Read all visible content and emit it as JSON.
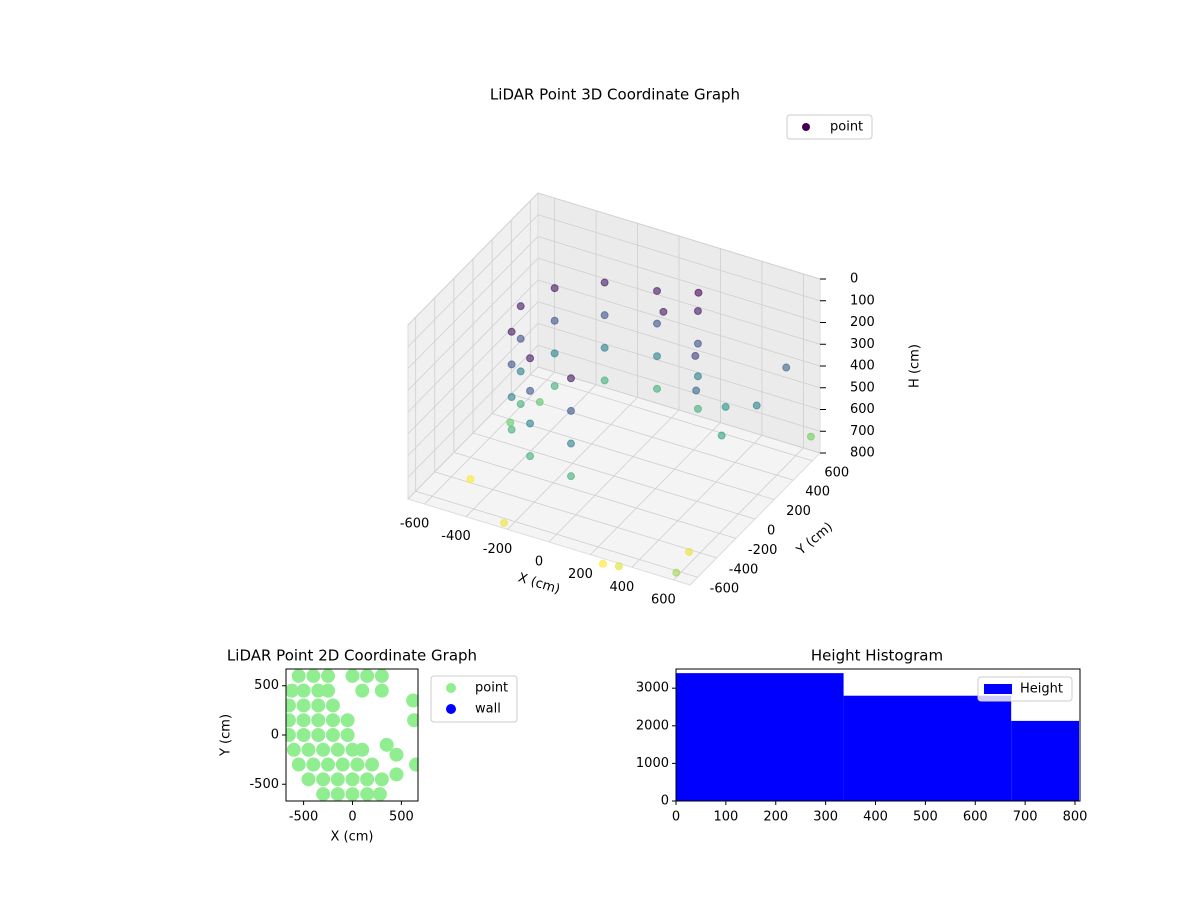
{
  "chart_data": [
    {
      "type": "scatter3d",
      "title": "LiDAR Point 3D Coordinate Graph",
      "xlabel": "X (cm)",
      "ylabel": "Y (cm)",
      "zlabel": "H (cm)",
      "xlim": [
        -680,
        680
      ],
      "ylim": [
        -680,
        680
      ],
      "zlim": [
        800,
        0
      ],
      "xticks": [
        -600,
        -400,
        -200,
        0,
        200,
        400,
        600
      ],
      "yticks": [
        -600,
        -400,
        -200,
        0,
        200,
        400,
        600
      ],
      "zticks": [
        0,
        100,
        200,
        300,
        400,
        500,
        600,
        700,
        800
      ],
      "colormap": "viridis",
      "grid": true,
      "legend": "upper right",
      "series": [
        {
          "name": "point",
          "color": "#440154",
          "x": [
            225,
            225,
            225,
            225,
            0,
            0,
            0,
            0,
            -225,
            -225,
            -225,
            -225,
            -390,
            -390,
            -390,
            -390,
            -450,
            -450,
            -450,
            -450,
            -390,
            -390,
            -390,
            -390,
            -225,
            -225,
            -225,
            -225,
            0,
            0,
            0,
            0,
            300,
            350,
            400,
            450,
            100,
            200,
            600,
            550,
            -600,
            -300,
            300,
            500,
            200,
            650,
            -500,
            -450,
            600
          ],
          "y": [
            390,
            390,
            390,
            390,
            450,
            450,
            450,
            450,
            390,
            390,
            390,
            390,
            225,
            225,
            225,
            225,
            0,
            0,
            0,
            0,
            -225,
            -225,
            -225,
            -225,
            -390,
            -390,
            -390,
            -390,
            -450,
            -450,
            -450,
            -450,
            200,
            100,
            300,
            150,
            300,
            450,
            500,
            300,
            -200,
            -500,
            -600,
            -300,
            -550,
            650,
            0,
            200,
            -650
          ],
          "z": [
            150,
            300,
            450,
            600,
            150,
            300,
            450,
            600,
            150,
            300,
            450,
            600,
            150,
            300,
            450,
            600,
            150,
            300,
            450,
            600,
            150,
            300,
            450,
            600,
            150,
            300,
            450,
            600,
            150,
            300,
            450,
            600,
            250,
            350,
            500,
            550,
            150,
            100,
            350,
            450,
            900,
            880,
            860,
            870,
            900,
            720,
            700,
            680,
            780
          ]
        }
      ]
    },
    {
      "type": "scatter",
      "title": "LiDAR Point 2D Coordinate Graph",
      "xlabel": "X (cm)",
      "ylabel": "Y (cm)",
      "xlim": [
        -680,
        670
      ],
      "ylim": [
        -670,
        670
      ],
      "xticks": [
        -500,
        0,
        500
      ],
      "yticks": [
        -500,
        0,
        500
      ],
      "legend": "outside right",
      "series": [
        {
          "name": "point",
          "color": "#90ee90",
          "x": [
            -550,
            -400,
            -250,
            0,
            150,
            300,
            -620,
            -500,
            -350,
            -250,
            100,
            300,
            -650,
            -500,
            -350,
            -200,
            -650,
            -500,
            -350,
            -200,
            -50,
            -650,
            -500,
            -350,
            -200,
            -50,
            -600,
            -450,
            -300,
            -150,
            0,
            100,
            -550,
            -400,
            -250,
            -100,
            50,
            200,
            -450,
            -300,
            -150,
            0,
            150,
            300,
            -300,
            -150,
            0,
            150,
            280,
            450,
            450,
            630,
            620,
            650,
            350
          ],
          "y": [
            600,
            600,
            600,
            600,
            600,
            600,
            450,
            450,
            450,
            450,
            450,
            450,
            300,
            300,
            300,
            300,
            150,
            150,
            150,
            150,
            150,
            0,
            0,
            0,
            0,
            0,
            -150,
            -150,
            -150,
            -150,
            -150,
            -150,
            -300,
            -300,
            -300,
            -300,
            -300,
            -300,
            -450,
            -450,
            -450,
            -450,
            -450,
            -450,
            -600,
            -600,
            -600,
            -600,
            -600,
            -200,
            -400,
            150,
            350,
            -300,
            -100
          ]
        },
        {
          "name": "wall",
          "color": "#0000ff",
          "x": [],
          "y": []
        }
      ]
    },
    {
      "type": "histogram",
      "title": "Height Histogram",
      "xlim": [
        0,
        810
      ],
      "ylim": [
        0,
        3510
      ],
      "xticks": [
        0,
        100,
        200,
        300,
        400,
        500,
        600,
        700,
        800
      ],
      "yticks": [
        0,
        1000,
        2000,
        3000
      ],
      "legend": "upper right",
      "series": [
        {
          "name": "Height",
          "color": "#0000ff",
          "bins": [
            0,
            336,
            672,
            808
          ],
          "values": [
            3400,
            2800,
            2130
          ]
        }
      ]
    }
  ]
}
